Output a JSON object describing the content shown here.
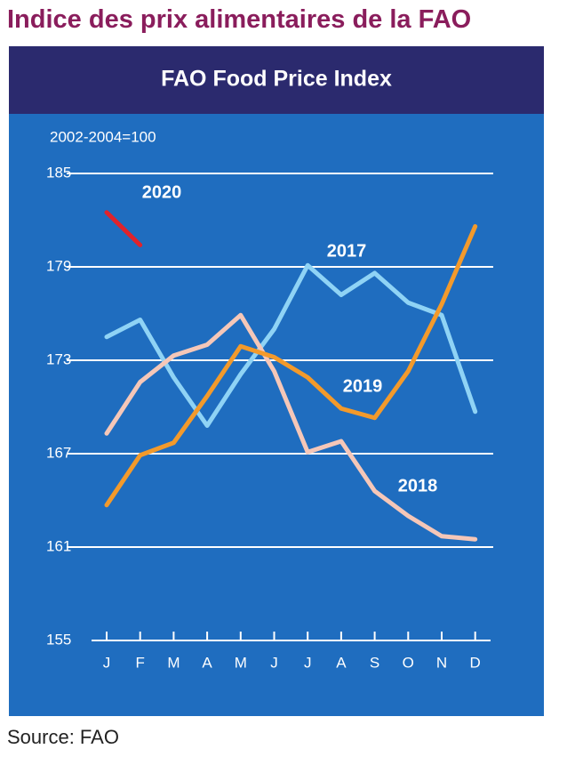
{
  "heading": "Indice des prix alimentaires de la FAO",
  "source": "Source: FAO",
  "chart_data": {
    "type": "line",
    "title": "FAO Food Price Index",
    "y_label": "2002-2004=100",
    "categories": [
      "J",
      "F",
      "M",
      "A",
      "M",
      "J",
      "J",
      "A",
      "S",
      "O",
      "N",
      "D"
    ],
    "ylim": [
      155,
      185
    ],
    "yticks": [
      155,
      161,
      167,
      173,
      179,
      185
    ],
    "grid": true,
    "series": [
      {
        "name": "2017",
        "color": "#8fd3f5",
        "values": [
          174.5,
          175.6,
          171.9,
          168.8,
          172.1,
          175.0,
          179.1,
          177.2,
          178.6,
          176.7,
          175.9,
          169.7
        ]
      },
      {
        "name": "2018",
        "color": "#f5c7b8",
        "values": [
          168.3,
          171.6,
          173.3,
          174.0,
          175.9,
          172.3,
          167.1,
          167.8,
          164.6,
          163.0,
          161.7,
          161.5
        ]
      },
      {
        "name": "2019",
        "color": "#f39a2b",
        "values": [
          163.7,
          166.9,
          167.7,
          170.7,
          173.9,
          173.2,
          171.9,
          169.9,
          169.3,
          172.3,
          176.6,
          181.6
        ]
      },
      {
        "name": "2020",
        "color": "#e0232b",
        "values": [
          182.5,
          180.4,
          null,
          null,
          null,
          null,
          null,
          null,
          null,
          null,
          null,
          null
        ]
      }
    ]
  }
}
